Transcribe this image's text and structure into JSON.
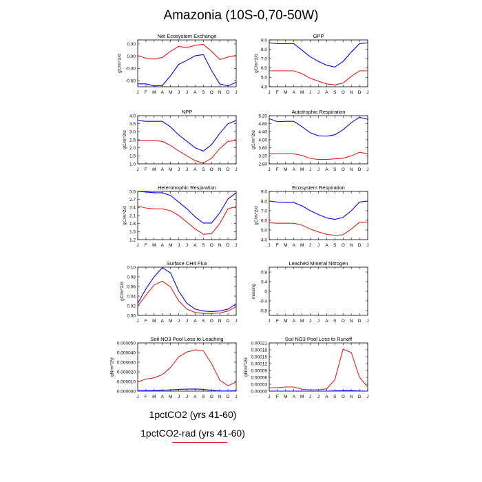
{
  "title": "Amazonia (10S-0,70-50W)",
  "colors": {
    "run1": "#0000ff",
    "run2": "#e61c1c"
  },
  "legend": {
    "run1_label": "1pctCO2 (yrs 41-60)",
    "run2_label": "1pctCO2-rad (yrs 41-60)"
  },
  "chart_data": [
    {
      "type": "line",
      "title": "Net Ecosystem Exchange",
      "ylabel": "gC/m^2/d",
      "x": [
        "J",
        "F",
        "M",
        "A",
        "M",
        "J",
        "J",
        "A",
        "S",
        "O",
        "N",
        "D",
        "J"
      ],
      "ylim": [
        -0.75,
        0.4
      ],
      "yticks": [
        "0.30",
        "0.00",
        "-0.30",
        "-0.60"
      ],
      "ytick_values": [
        0.3,
        0.0,
        -0.3,
        -0.6
      ],
      "series": [
        {
          "values": [
            -0.68,
            -0.68,
            -0.73,
            -0.72,
            -0.48,
            -0.2,
            -0.1,
            0.01,
            0.04,
            -0.35,
            -0.68,
            -0.73,
            -0.64
          ]
        },
        {
          "values": [
            0.02,
            -0.05,
            -0.07,
            -0.03,
            0.12,
            0.24,
            0.21,
            0.27,
            0.29,
            0.12,
            -0.08,
            -0.02,
            0.02
          ]
        }
      ]
    },
    {
      "type": "line",
      "title": "GPP",
      "ylabel": "gC/m^2/d",
      "x": [
        "J",
        "F",
        "M",
        "A",
        "M",
        "J",
        "J",
        "A",
        "S",
        "O",
        "N",
        "D",
        "J"
      ],
      "ylim": [
        4.0,
        9.0
      ],
      "yticks": [
        "9.0",
        "8.0",
        "7.0",
        "6.0",
        "5.0",
        "4.0"
      ],
      "ytick_values": [
        9.0,
        8.0,
        7.0,
        6.0,
        5.0,
        4.0
      ],
      "series": [
        {
          "values": [
            8.7,
            8.6,
            8.6,
            8.6,
            7.9,
            7.2,
            6.7,
            6.3,
            6.1,
            6.7,
            7.7,
            8.6,
            8.7
          ]
        },
        {
          "values": [
            5.7,
            5.7,
            5.7,
            5.7,
            5.4,
            4.9,
            4.6,
            4.3,
            4.2,
            4.4,
            5.1,
            5.7,
            5.7
          ]
        }
      ]
    },
    {
      "type": "line",
      "title": "NPP",
      "ylabel": "gC/m^2/d",
      "x": [
        "J",
        "F",
        "M",
        "A",
        "M",
        "J",
        "J",
        "A",
        "S",
        "O",
        "N",
        "D",
        "J"
      ],
      "ylim": [
        1.0,
        4.0
      ],
      "yticks": [
        "4.0",
        "3.5",
        "3.0",
        "2.5",
        "2.0",
        "1.5",
        "1.0"
      ],
      "ytick_values": [
        4.0,
        3.5,
        3.0,
        2.5,
        2.0,
        1.5,
        1.0
      ],
      "series": [
        {
          "values": [
            3.7,
            3.65,
            3.65,
            3.65,
            3.3,
            2.8,
            2.4,
            2.0,
            1.8,
            2.2,
            2.9,
            3.5,
            3.7
          ]
        },
        {
          "values": [
            2.45,
            2.45,
            2.45,
            2.4,
            2.15,
            1.8,
            1.5,
            1.2,
            1.05,
            1.35,
            1.95,
            2.4,
            2.45
          ]
        }
      ]
    },
    {
      "type": "line",
      "title": "Autotrophic Respiration",
      "ylabel": "gC/m^2/d",
      "x": [
        "J",
        "F",
        "M",
        "A",
        "M",
        "J",
        "J",
        "A",
        "S",
        "O",
        "N",
        "D",
        "J"
      ],
      "ylim": [
        2.8,
        5.2
      ],
      "yticks": [
        "5.20",
        "4.80",
        "4.40",
        "4.00",
        "3.60",
        "3.20",
        "2.80"
      ],
      "ytick_values": [
        5.2,
        4.8,
        4.4,
        4.0,
        3.6,
        3.2,
        2.8
      ],
      "series": [
        {
          "values": [
            5.05,
            4.9,
            4.92,
            4.92,
            4.65,
            4.35,
            4.2,
            4.18,
            4.25,
            4.5,
            4.85,
            5.12,
            5.02
          ]
        },
        {
          "values": [
            3.3,
            3.3,
            3.3,
            3.3,
            3.22,
            3.07,
            3.02,
            3.02,
            3.05,
            3.08,
            3.2,
            3.38,
            3.3
          ]
        }
      ]
    },
    {
      "type": "line",
      "title": "Heterotrophic Respiration",
      "ylabel": "gC/m^2/d",
      "x": [
        "J",
        "F",
        "M",
        "A",
        "M",
        "J",
        "J",
        "A",
        "S",
        "O",
        "N",
        "D",
        "J"
      ],
      "ylim": [
        1.2,
        3.0
      ],
      "yticks": [
        "3.0",
        "2.7",
        "2.4",
        "2.1",
        "1.8",
        "1.5",
        "1.2"
      ],
      "ytick_values": [
        3.0,
        2.7,
        2.4,
        2.1,
        1.8,
        1.5,
        1.2
      ],
      "series": [
        {
          "values": [
            3.0,
            2.98,
            2.95,
            2.95,
            2.85,
            2.6,
            2.35,
            2.05,
            1.82,
            1.82,
            2.2,
            2.72,
            2.95
          ]
        },
        {
          "values": [
            2.45,
            2.38,
            2.35,
            2.35,
            2.28,
            2.1,
            1.85,
            1.6,
            1.4,
            1.42,
            1.8,
            2.35,
            2.43
          ]
        }
      ]
    },
    {
      "type": "line",
      "title": "Ecosystem Respiration",
      "ylabel": "gC/m^2/d",
      "x": [
        "J",
        "F",
        "M",
        "A",
        "M",
        "J",
        "J",
        "A",
        "S",
        "O",
        "N",
        "D",
        "J"
      ],
      "ylim": [
        4.0,
        9.0
      ],
      "yticks": [
        "9.0",
        "8.0",
        "7.0",
        "6.0",
        "5.0",
        "4.0"
      ],
      "ytick_values": [
        9.0,
        8.0,
        7.0,
        6.0,
        5.0,
        4.0
      ],
      "series": [
        {
          "values": [
            8.0,
            7.9,
            7.85,
            7.85,
            7.5,
            7.0,
            6.6,
            6.25,
            6.1,
            6.3,
            7.0,
            7.9,
            8.0
          ]
        },
        {
          "values": [
            5.75,
            5.7,
            5.7,
            5.7,
            5.5,
            5.1,
            4.8,
            4.55,
            4.45,
            4.5,
            5.1,
            5.8,
            5.8
          ]
        }
      ]
    },
    {
      "type": "line",
      "title": "Surface CH4 Flux",
      "ylabel": "gC/m^2/d",
      "x": [
        "J",
        "F",
        "M",
        "A",
        "M",
        "J",
        "J",
        "A",
        "S",
        "O",
        "N",
        "D",
        "J"
      ],
      "ylim": [
        0.0,
        0.1
      ],
      "yticks": [
        "0.10",
        "0.08",
        "0.06",
        "0.04",
        "0.02",
        "0.00"
      ],
      "ytick_values": [
        0.1,
        0.08,
        0.06,
        0.04,
        0.02,
        0.0
      ],
      "series": [
        {
          "values": [
            0.025,
            0.055,
            0.08,
            0.099,
            0.088,
            0.05,
            0.025,
            0.013,
            0.009,
            0.008,
            0.009,
            0.013,
            0.024
          ]
        },
        {
          "values": [
            0.019,
            0.042,
            0.063,
            0.071,
            0.059,
            0.03,
            0.013,
            0.006,
            0.004,
            0.004,
            0.005,
            0.009,
            0.018
          ]
        }
      ]
    },
    {
      "type": "line",
      "title": "Leached Mineral Nitrogen",
      "ylabel": "missing",
      "x": [
        "J",
        "F",
        "M",
        "A",
        "M",
        "J",
        "J",
        "A",
        "S",
        "O",
        "N",
        "D",
        "J"
      ],
      "ylim": [
        -1.0,
        1.0
      ],
      "yticks": [
        "0.8",
        "0.4",
        "0",
        "-0.4",
        "-0.8"
      ],
      "ytick_values": [
        0.8,
        0.4,
        0.0,
        -0.4,
        -0.8
      ],
      "series": []
    },
    {
      "type": "line",
      "title": "Soil NO3 Pool Loss to Leaching",
      "ylabel": "gN/m^2/d",
      "x": [
        "J",
        "F",
        "M",
        "A",
        "M",
        "J",
        "J",
        "A",
        "S",
        "O",
        "N",
        "D",
        "J"
      ],
      "ylim": [
        0.0,
        5e-05
      ],
      "yticks": [
        "0.000050",
        "0.000040",
        "0.000030",
        "0.000020",
        "0.000010",
        "0.000000"
      ],
      "ytick_values": [
        5e-05,
        4e-05,
        3e-05,
        2e-05,
        1e-05,
        0.0
      ],
      "series": [
        {
          "values": [
            3e-07,
            4e-07,
            6e-07,
            9e-07,
            1.3e-06,
            1.8e-06,
            2.1e-06,
            2.2e-06,
            1.8e-06,
            9e-07,
            2e-07,
            1e-07,
            3e-07
          ]
        },
        {
          "values": [
            9.5e-06,
            1.25e-05,
            1.38e-05,
            1.7e-05,
            2.45e-05,
            3.55e-05,
            4.05e-05,
            4.28e-05,
            4.18e-05,
            2.85e-05,
            1.15e-05,
            5.5e-06,
            9.5e-06
          ]
        }
      ]
    },
    {
      "type": "line",
      "title": "Soil NO3 Pool Loss to Runoff",
      "ylabel": "gN/m^2/d",
      "x": [
        "J",
        "F",
        "M",
        "A",
        "M",
        "J",
        "J",
        "A",
        "S",
        "O",
        "N",
        "D",
        "J"
      ],
      "ylim": [
        0.0,
        0.00021
      ],
      "yticks": [
        "0.00021",
        "0.00018",
        "0.00015",
        "0.00012",
        "0.00009",
        "0.00006",
        "0.00003",
        "0.00000"
      ],
      "ytick_values": [
        0.00021,
        0.00018,
        0.00015,
        0.00012,
        9e-05,
        6e-05,
        3e-05,
        0.0
      ],
      "series": [
        {
          "values": [
            0.0,
            0.0,
            0.0,
            0.0,
            0.0,
            0.0,
            0.0,
            0.0,
            1e-06,
            2e-06,
            2e-06,
            5e-07,
            0.0
          ]
        },
        {
          "values": [
            1.5e-05,
            1.5e-05,
            1.8e-05,
            1.8e-05,
            8e-06,
            6e-06,
            6e-06,
            1e-05,
            5e-05,
            0.000183,
            0.000168,
            6e-05,
            1.8e-05
          ]
        }
      ]
    }
  ]
}
